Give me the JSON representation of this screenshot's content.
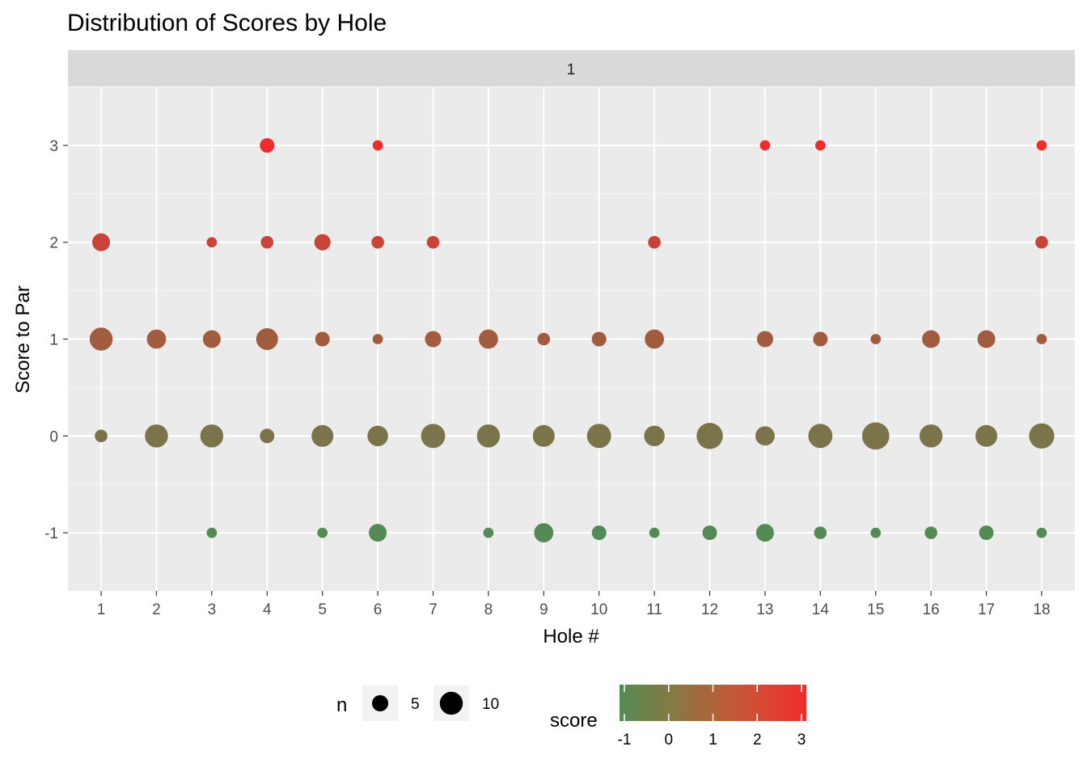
{
  "chart_data": {
    "type": "scatter",
    "title": "Distribution of Scores by Hole",
    "facet_label": "1",
    "xlabel": "Hole #",
    "ylabel": "Score to Par",
    "x_ticks": [
      "1",
      "2",
      "3",
      "4",
      "5",
      "6",
      "7",
      "8",
      "9",
      "10",
      "11",
      "12",
      "13",
      "14",
      "15",
      "16",
      "17",
      "18"
    ],
    "y_ticks": [
      "-1",
      "0",
      "1",
      "2",
      "3"
    ],
    "ylim": [
      -1.6,
      3.6
    ],
    "xlim": [
      0.4,
      18.6
    ],
    "grid": true,
    "legend_position": "bottom",
    "size_legend": {
      "title": "n",
      "breaks": [
        5,
        10
      ],
      "labels": [
        "5",
        "10"
      ]
    },
    "color_legend": {
      "title": "score",
      "breaks": [
        -1,
        0,
        1,
        2,
        3
      ],
      "labels": [
        "-1",
        "0",
        "1",
        "2",
        "3"
      ],
      "low_color": "#548B54",
      "high_color": "#EE2C2C"
    },
    "points": [
      {
        "x": 1,
        "y": 0,
        "n": 3
      },
      {
        "x": 1,
        "y": 1,
        "n": 10
      },
      {
        "x": 1,
        "y": 2,
        "n": 6
      },
      {
        "x": 2,
        "y": 0,
        "n": 10
      },
      {
        "x": 2,
        "y": 1,
        "n": 7
      },
      {
        "x": 3,
        "y": -1,
        "n": 2
      },
      {
        "x": 3,
        "y": 0,
        "n": 10
      },
      {
        "x": 3,
        "y": 1,
        "n": 6
      },
      {
        "x": 3,
        "y": 2,
        "n": 2
      },
      {
        "x": 4,
        "y": 0,
        "n": 4
      },
      {
        "x": 4,
        "y": 1,
        "n": 9
      },
      {
        "x": 4,
        "y": 2,
        "n": 3
      },
      {
        "x": 4,
        "y": 3,
        "n": 4
      },
      {
        "x": 5,
        "y": -1,
        "n": 2
      },
      {
        "x": 5,
        "y": 0,
        "n": 9
      },
      {
        "x": 5,
        "y": 1,
        "n": 4
      },
      {
        "x": 5,
        "y": 2,
        "n": 5
      },
      {
        "x": 6,
        "y": -1,
        "n": 6
      },
      {
        "x": 6,
        "y": 0,
        "n": 8
      },
      {
        "x": 6,
        "y": 1,
        "n": 2
      },
      {
        "x": 6,
        "y": 2,
        "n": 3
      },
      {
        "x": 6,
        "y": 3,
        "n": 2
      },
      {
        "x": 7,
        "y": 0,
        "n": 11
      },
      {
        "x": 7,
        "y": 1,
        "n": 5
      },
      {
        "x": 7,
        "y": 2,
        "n": 3
      },
      {
        "x": 8,
        "y": -1,
        "n": 2
      },
      {
        "x": 8,
        "y": 0,
        "n": 10
      },
      {
        "x": 8,
        "y": 1,
        "n": 7
      },
      {
        "x": 9,
        "y": -1,
        "n": 7
      },
      {
        "x": 9,
        "y": 0,
        "n": 9
      },
      {
        "x": 9,
        "y": 1,
        "n": 3
      },
      {
        "x": 10,
        "y": -1,
        "n": 4
      },
      {
        "x": 10,
        "y": 0,
        "n": 11
      },
      {
        "x": 10,
        "y": 1,
        "n": 4
      },
      {
        "x": 11,
        "y": -1,
        "n": 2
      },
      {
        "x": 11,
        "y": 0,
        "n": 8
      },
      {
        "x": 11,
        "y": 1,
        "n": 7
      },
      {
        "x": 11,
        "y": 2,
        "n": 3
      },
      {
        "x": 12,
        "y": -1,
        "n": 4
      },
      {
        "x": 12,
        "y": 0,
        "n": 13
      },
      {
        "x": 13,
        "y": -1,
        "n": 6
      },
      {
        "x": 13,
        "y": 0,
        "n": 7
      },
      {
        "x": 13,
        "y": 1,
        "n": 5
      },
      {
        "x": 13,
        "y": 3,
        "n": 2
      },
      {
        "x": 14,
        "y": -1,
        "n": 3
      },
      {
        "x": 14,
        "y": 0,
        "n": 11
      },
      {
        "x": 14,
        "y": 1,
        "n": 4
      },
      {
        "x": 14,
        "y": 3,
        "n": 2
      },
      {
        "x": 15,
        "y": -1,
        "n": 2
      },
      {
        "x": 15,
        "y": 0,
        "n": 14
      },
      {
        "x": 15,
        "y": 1,
        "n": 2
      },
      {
        "x": 16,
        "y": -1,
        "n": 3
      },
      {
        "x": 16,
        "y": 0,
        "n": 10
      },
      {
        "x": 16,
        "y": 1,
        "n": 6
      },
      {
        "x": 17,
        "y": -1,
        "n": 4
      },
      {
        "x": 17,
        "y": 0,
        "n": 9
      },
      {
        "x": 17,
        "y": 1,
        "n": 6
      },
      {
        "x": 18,
        "y": -1,
        "n": 2
      },
      {
        "x": 18,
        "y": 0,
        "n": 12
      },
      {
        "x": 18,
        "y": 1,
        "n": 2
      },
      {
        "x": 18,
        "y": 2,
        "n": 3
      },
      {
        "x": 18,
        "y": 3,
        "n": 2
      }
    ]
  }
}
